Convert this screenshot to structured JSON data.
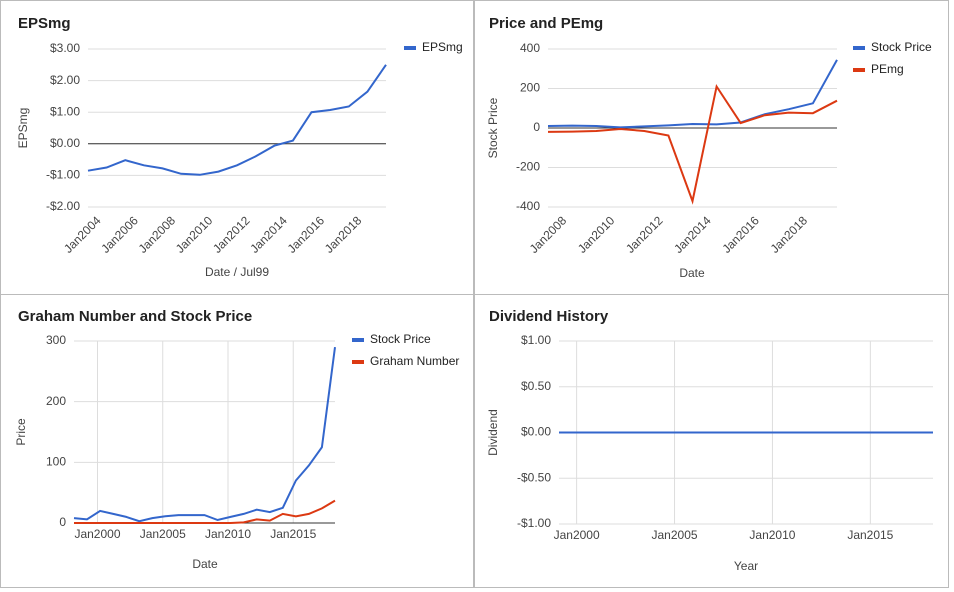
{
  "chart_data": [
    {
      "type": "line",
      "title": "EPSmg",
      "xlabel": "Date / Jul99",
      "ylabel": "EPSmg",
      "x": [
        2003.4,
        2004.4,
        2005.4,
        2006.4,
        2007.4,
        2008.4,
        2009.4,
        2010.4,
        2011.4,
        2012.4,
        2013.4,
        2014.4,
        2015.4,
        2016.4,
        2017.4,
        2018.4,
        2019.4
      ],
      "series": [
        {
          "name": "EPSmg",
          "color": "#3366cc",
          "values": [
            -0.85,
            -0.75,
            -0.52,
            -0.68,
            -0.78,
            -0.95,
            -0.98,
            -0.88,
            -0.68,
            -0.4,
            -0.06,
            0.1,
            1.0,
            1.07,
            1.18,
            1.65,
            2.5
          ]
        }
      ],
      "xlim": [
        2003.4,
        2019.4
      ],
      "xticks": [
        {
          "value": 2004,
          "label": "Jan2004"
        },
        {
          "value": 2006,
          "label": "Jan2006"
        },
        {
          "value": 2008,
          "label": "Jan2008"
        },
        {
          "value": 2010,
          "label": "Jan2010"
        },
        {
          "value": 2012,
          "label": "Jan2012"
        },
        {
          "value": 2014,
          "label": "Jan2014"
        },
        {
          "value": 2016,
          "label": "Jan2016"
        },
        {
          "value": 2018,
          "label": "Jan2018"
        }
      ],
      "ylim": [
        -2,
        3
      ],
      "yticks": [
        {
          "value": -2,
          "label": "-$2.00"
        },
        {
          "value": -1,
          "label": "-$1.00"
        },
        {
          "value": 0,
          "label": "$0.00"
        },
        {
          "value": 1,
          "label": "$1.00"
        },
        {
          "value": 2,
          "label": "$2.00"
        },
        {
          "value": 3,
          "label": "$3.00"
        }
      ],
      "grid": true,
      "zero_line": true,
      "legend": "right"
    },
    {
      "type": "line",
      "title": "Price and PEmg",
      "xlabel": "Date",
      "ylabel": "Stock Price",
      "x": [
        2007.3,
        2008.3,
        2009.3,
        2010.3,
        2011.3,
        2012.3,
        2013.3,
        2014.3,
        2015.3,
        2016.3,
        2017.3,
        2018.3,
        2019.3
      ],
      "series": [
        {
          "name": "Stock Price",
          "color": "#3366cc",
          "values": [
            10,
            12,
            10,
            3,
            8,
            13,
            20,
            18,
            28,
            70,
            95,
            125,
            345
          ]
        },
        {
          "name": "PEmg",
          "color": "#dc3912",
          "values": [
            -20,
            -18,
            -15,
            -5,
            -15,
            -38,
            -370,
            210,
            25,
            65,
            78,
            75,
            138
          ]
        }
      ],
      "xlim": [
        2007.3,
        2019.3
      ],
      "xticks": [
        {
          "value": 2008,
          "label": "Jan2008"
        },
        {
          "value": 2010,
          "label": "Jan2010"
        },
        {
          "value": 2012,
          "label": "Jan2012"
        },
        {
          "value": 2014,
          "label": "Jan2014"
        },
        {
          "value": 2016,
          "label": "Jan2016"
        },
        {
          "value": 2018,
          "label": "Jan2018"
        }
      ],
      "ylim": [
        -400,
        400
      ],
      "yticks": [
        -400,
        -200,
        0,
        200,
        400
      ],
      "grid": true,
      "zero_line": true,
      "legend": "right"
    },
    {
      "type": "line",
      "title": "Graham Number and Stock Price",
      "xlabel": "Date",
      "ylabel": "Price",
      "x": [
        1998.2,
        1999.2,
        2000.2,
        2001.2,
        2002.2,
        2003.2,
        2004.2,
        2005.2,
        2006.2,
        2007.2,
        2008.2,
        2009.2,
        2010.2,
        2011.2,
        2012.2,
        2013.2,
        2014.2,
        2015.2,
        2016.2,
        2017.2,
        2018.2
      ],
      "series": [
        {
          "name": "Stock Price",
          "color": "#3366cc",
          "values": [
            8,
            6,
            20,
            15,
            10,
            3,
            8,
            11,
            13,
            13,
            13,
            5,
            10,
            15,
            22,
            18,
            25,
            70,
            95,
            125,
            290
          ]
        },
        {
          "name": "Graham Number",
          "color": "#dc3912",
          "values": [
            0,
            0,
            0,
            0,
            0,
            0,
            0,
            0,
            0,
            0,
            0,
            0,
            0,
            1,
            6,
            4,
            15,
            11,
            15,
            24,
            37
          ]
        }
      ],
      "xlim": [
        1998.2,
        2018.2
      ],
      "xticks": [
        {
          "value": 2000,
          "label": "Jan2000"
        },
        {
          "value": 2005,
          "label": "Jan2005"
        },
        {
          "value": 2010,
          "label": "Jan2010"
        },
        {
          "value": 2015,
          "label": "Jan2015"
        }
      ],
      "ylim": [
        0,
        300
      ],
      "yticks": [
        0,
        100,
        200,
        300
      ],
      "grid": true,
      "xgrid": true,
      "zero_line": true,
      "legend": "right"
    },
    {
      "type": "line",
      "title": "Dividend History",
      "xlabel": "Year",
      "ylabel": "Dividend",
      "x": [
        1999.1,
        2018.2
      ],
      "color": "#3366cc",
      "values": [
        0,
        0
      ],
      "xlim": [
        1999.1,
        2018.2
      ],
      "xticks": [
        {
          "value": 2000,
          "label": "Jan2000"
        },
        {
          "value": 2005,
          "label": "Jan2005"
        },
        {
          "value": 2010,
          "label": "Jan2010"
        },
        {
          "value": 2015,
          "label": "Jan2015"
        }
      ],
      "ylim": [
        -1,
        1
      ],
      "yticks": [
        {
          "value": -1,
          "label": "-$1.00"
        },
        {
          "value": -0.5,
          "label": "-$0.50"
        },
        {
          "value": 0,
          "label": "$0.00"
        },
        {
          "value": 0.5,
          "label": "$0.50"
        },
        {
          "value": 1,
          "label": "$1.00"
        }
      ],
      "grid": true,
      "xgrid": true
    }
  ]
}
